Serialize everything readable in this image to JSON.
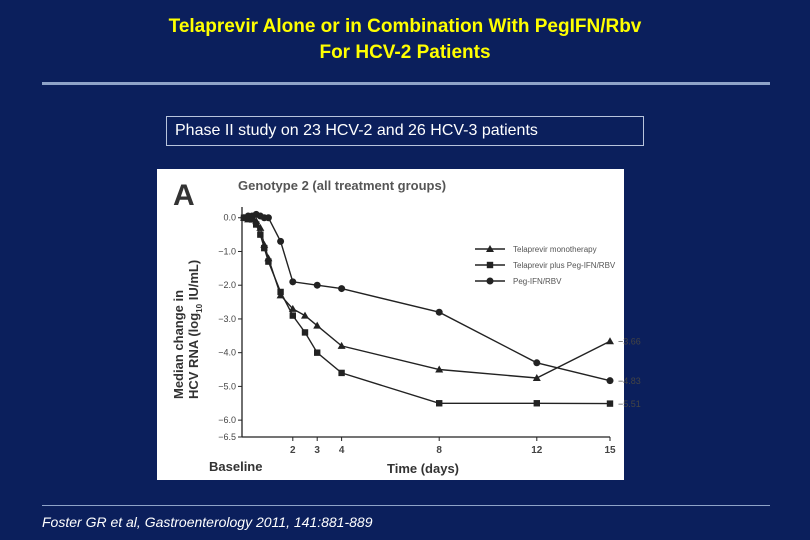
{
  "slide": {
    "title_line1": "Telaprevir Alone or in Combination With PegIFN/Rbv",
    "title_line2": "For HCV-2 Patients",
    "subtitle": "Phase II study on 23 HCV-2 and 26 HCV-3 patients",
    "citation": "Foster GR et al, Gastroenterology 2011, 141:881-889",
    "colors": {
      "background": "#0b1f5c",
      "title": "#ffff00",
      "text": "#ffffff",
      "plot_line": "#222222"
    }
  },
  "chart_data": {
    "type": "line",
    "panel_label": "A",
    "title": "Genotype 2 (all treatment groups)",
    "xlabel": "Time (days)",
    "ylabel_line1": "Median change in",
    "ylabel_line2_prefix": "HCV RNA (log",
    "ylabel_line2_sub": "10",
    "ylabel_line2_suffix": " IU/mL)",
    "xticks": [
      2,
      3,
      4,
      8,
      12,
      15
    ],
    "xtick_labels": [
      "2",
      "3",
      "4",
      "8",
      "12",
      "15"
    ],
    "baseline_label": "Baseline",
    "yticks": [
      0,
      -1,
      -2,
      -3,
      -4,
      -5,
      -6,
      -6.5
    ],
    "ytick_labels": [
      "0.0",
      "−1.0",
      "−2.0",
      "−3.0",
      "−4.0",
      "−5.0",
      "−6.0",
      "−6.5"
    ],
    "xlim": [
      0,
      15
    ],
    "ylim": [
      -6.5,
      0.2
    ],
    "grid": false,
    "legend_position": "upper-right",
    "series": [
      {
        "name": "Telaprevir monotherapy",
        "marker": "triangle",
        "x": [
          0,
          0.17,
          0.33,
          0.5,
          0.67,
          0.83,
          1,
          1.5,
          2,
          2.5,
          3,
          4,
          8,
          12,
          15
        ],
        "y": [
          0,
          -0.05,
          0,
          -0.1,
          -0.3,
          -0.8,
          -1.2,
          -2.3,
          -2.7,
          -2.9,
          -3.2,
          -3.8,
          -4.5,
          -4.75,
          -3.66
        ],
        "end_label": "−3.66"
      },
      {
        "name": "Telaprevir plus Peg-IFN/RBV",
        "marker": "square",
        "x": [
          0,
          0.17,
          0.33,
          0.5,
          0.67,
          0.83,
          1,
          1.5,
          2,
          2.5,
          3,
          4,
          8,
          12,
          15
        ],
        "y": [
          0,
          0,
          -0.05,
          -0.2,
          -0.5,
          -0.9,
          -1.3,
          -2.2,
          -2.9,
          -3.4,
          -4.0,
          -4.6,
          -5.5,
          -5.5,
          -5.51
        ],
        "end_label": "−5.51"
      },
      {
        "name": "Peg-IFN/RBV",
        "marker": "circle",
        "x": [
          0,
          0.17,
          0.33,
          0.5,
          0.67,
          0.83,
          1,
          1.5,
          2,
          3,
          4,
          8,
          12,
          15
        ],
        "y": [
          0,
          0.05,
          0.05,
          0.1,
          0.05,
          0,
          0,
          -0.7,
          -1.9,
          -2.0,
          -2.1,
          -2.8,
          -4.3,
          -4.83
        ],
        "end_label": "−4.83"
      }
    ]
  }
}
